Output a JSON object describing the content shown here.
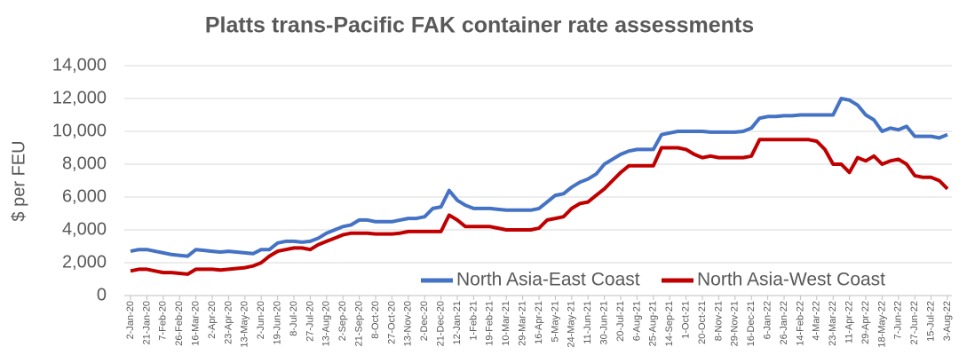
{
  "chart_data": {
    "type": "line",
    "title": "Platts trans-Pacific FAK container rate assessments",
    "y_label": "$ per FEU",
    "categories": [
      "2-Jan-20",
      null,
      "21-Jan-20",
      null,
      "7-Feb-20",
      null,
      "26-Feb-20",
      null,
      "16-Mar-20",
      null,
      "2-Apr-20",
      null,
      "23-Apr-20",
      null,
      "13-May-20",
      null,
      "2-Jun-20",
      null,
      "19-Jun-20",
      null,
      "8-Jul-20",
      null,
      "27-Jul-20",
      null,
      "13-Aug-20",
      null,
      "2-Sep-20",
      null,
      "21-Sep-20",
      null,
      "8-Oct-20",
      null,
      "27-Oct-20",
      null,
      "13-Nov-20",
      null,
      "2-Dec-20",
      null,
      "21-Dec-20",
      null,
      "12-Jan-21",
      null,
      "1-Feb-21",
      null,
      "19-Feb-21",
      null,
      "10-Mar-21",
      null,
      "29-Mar-21",
      null,
      "16-Apr-21",
      null,
      "5-May-21",
      null,
      "24-May-21",
      null,
      "11-Jun-21",
      null,
      "30-Jun-21",
      null,
      "20-Jul-21",
      null,
      "6-Aug-21",
      null,
      "25-Aug-21",
      null,
      "14-Sep-21",
      null,
      "1-Oct-21",
      null,
      "20-Oct-21",
      null,
      "8-Nov-21",
      null,
      "29-Nov-21",
      null,
      "16-Dec-21",
      null,
      "6-Jan-22",
      null,
      "26-Jan-22",
      null,
      "14-Feb-22",
      null,
      "4-Mar-22",
      null,
      "23-Mar-22",
      null,
      "11-Apr-22",
      null,
      "29-Apr-22",
      null,
      "18-May-22",
      null,
      "7-Jun-22",
      null,
      "27-Jun-22",
      null,
      "15-Jul-22",
      null,
      "3-Aug-22"
    ],
    "series": [
      {
        "name": "North Asia-East Coast",
        "color": "#4472c4",
        "values": [
          2700,
          2800,
          2800,
          2700,
          2600,
          2500,
          2450,
          2400,
          2800,
          2750,
          2700,
          2650,
          2700,
          2650,
          2600,
          2550,
          2800,
          2800,
          3200,
          3300,
          3300,
          3250,
          3300,
          3500,
          3800,
          4000,
          4200,
          4300,
          4600,
          4600,
          4500,
          4500,
          4500,
          4600,
          4700,
          4700,
          4800,
          5300,
          5400,
          6400,
          5800,
          5500,
          5300,
          5300,
          5300,
          5250,
          5200,
          5200,
          5200,
          5200,
          5300,
          5700,
          6100,
          6200,
          6600,
          6900,
          7100,
          7400,
          8000,
          8300,
          8600,
          8800,
          8900,
          8900,
          8900,
          9800,
          9900,
          10000,
          10000,
          10000,
          10000,
          9950,
          9950,
          9950,
          9950,
          10000,
          10200,
          10800,
          10900,
          10900,
          10950,
          10950,
          11000,
          11000,
          11000,
          11000,
          11000,
          12000,
          11900,
          11600,
          11000,
          10700,
          10000,
          10200,
          10100,
          10300,
          9700,
          9700,
          9700,
          9600,
          9800
        ]
      },
      {
        "name": "North Asia-West Coast",
        "color": "#c00000",
        "values": [
          1500,
          1600,
          1600,
          1500,
          1400,
          1400,
          1350,
          1300,
          1600,
          1600,
          1600,
          1550,
          1600,
          1650,
          1700,
          1800,
          2000,
          2400,
          2700,
          2800,
          2900,
          2900,
          2800,
          3100,
          3300,
          3500,
          3700,
          3800,
          3800,
          3800,
          3750,
          3750,
          3750,
          3800,
          3900,
          3900,
          3900,
          3900,
          3900,
          4900,
          4600,
          4200,
          4200,
          4200,
          4200,
          4100,
          4000,
          4000,
          4000,
          4000,
          4100,
          4600,
          4700,
          4800,
          5300,
          5600,
          5700,
          6100,
          6500,
          7000,
          7500,
          7900,
          7900,
          7900,
          7900,
          9000,
          9000,
          9000,
          8900,
          8600,
          8400,
          8500,
          8400,
          8400,
          8400,
          8400,
          8500,
          9500,
          9500,
          9500,
          9500,
          9500,
          9500,
          9500,
          9400,
          8900,
          8000,
          8000,
          7500,
          8400,
          8200,
          8500,
          8000,
          8200,
          8300,
          8000,
          7300,
          7200,
          7200,
          7000,
          6500
        ]
      }
    ],
    "ylim": [
      0,
      14000
    ],
    "yticks": [
      0,
      {
        "value": 2000,
        "label": "2,000"
      },
      {
        "value": 4000,
        "label": "4,000"
      },
      {
        "value": 6000,
        "label": "6,000"
      },
      {
        "value": 8000,
        "label": "8,000"
      },
      {
        "value": 10000,
        "label": "10,000"
      },
      {
        "value": 12000,
        "label": "12,000"
      },
      {
        "value": 14000,
        "label": "14,000"
      }
    ],
    "grid": true,
    "legend": "bottom"
  }
}
